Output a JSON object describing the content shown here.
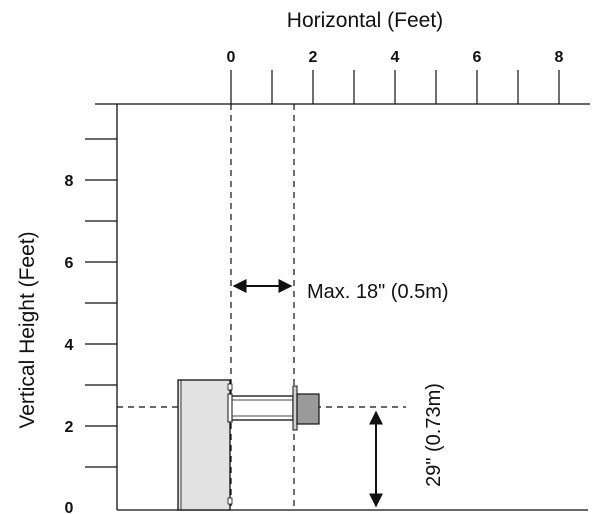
{
  "axes": {
    "x_title": "Horizontal (Feet)",
    "y_title": "Vertical Height (Feet)",
    "x_ticks": [
      "0",
      "2",
      "4",
      "6",
      "8"
    ],
    "y_ticks": [
      "0",
      "2",
      "4",
      "6",
      "8"
    ]
  },
  "annotations": {
    "max_offset": "Max. 18\" (0.5m)",
    "height": "29\" (0.73m)"
  },
  "colors": {
    "line": "#111111",
    "wall_fill": "#e2e2e2",
    "cap_fill": "#9a9a9a"
  }
}
